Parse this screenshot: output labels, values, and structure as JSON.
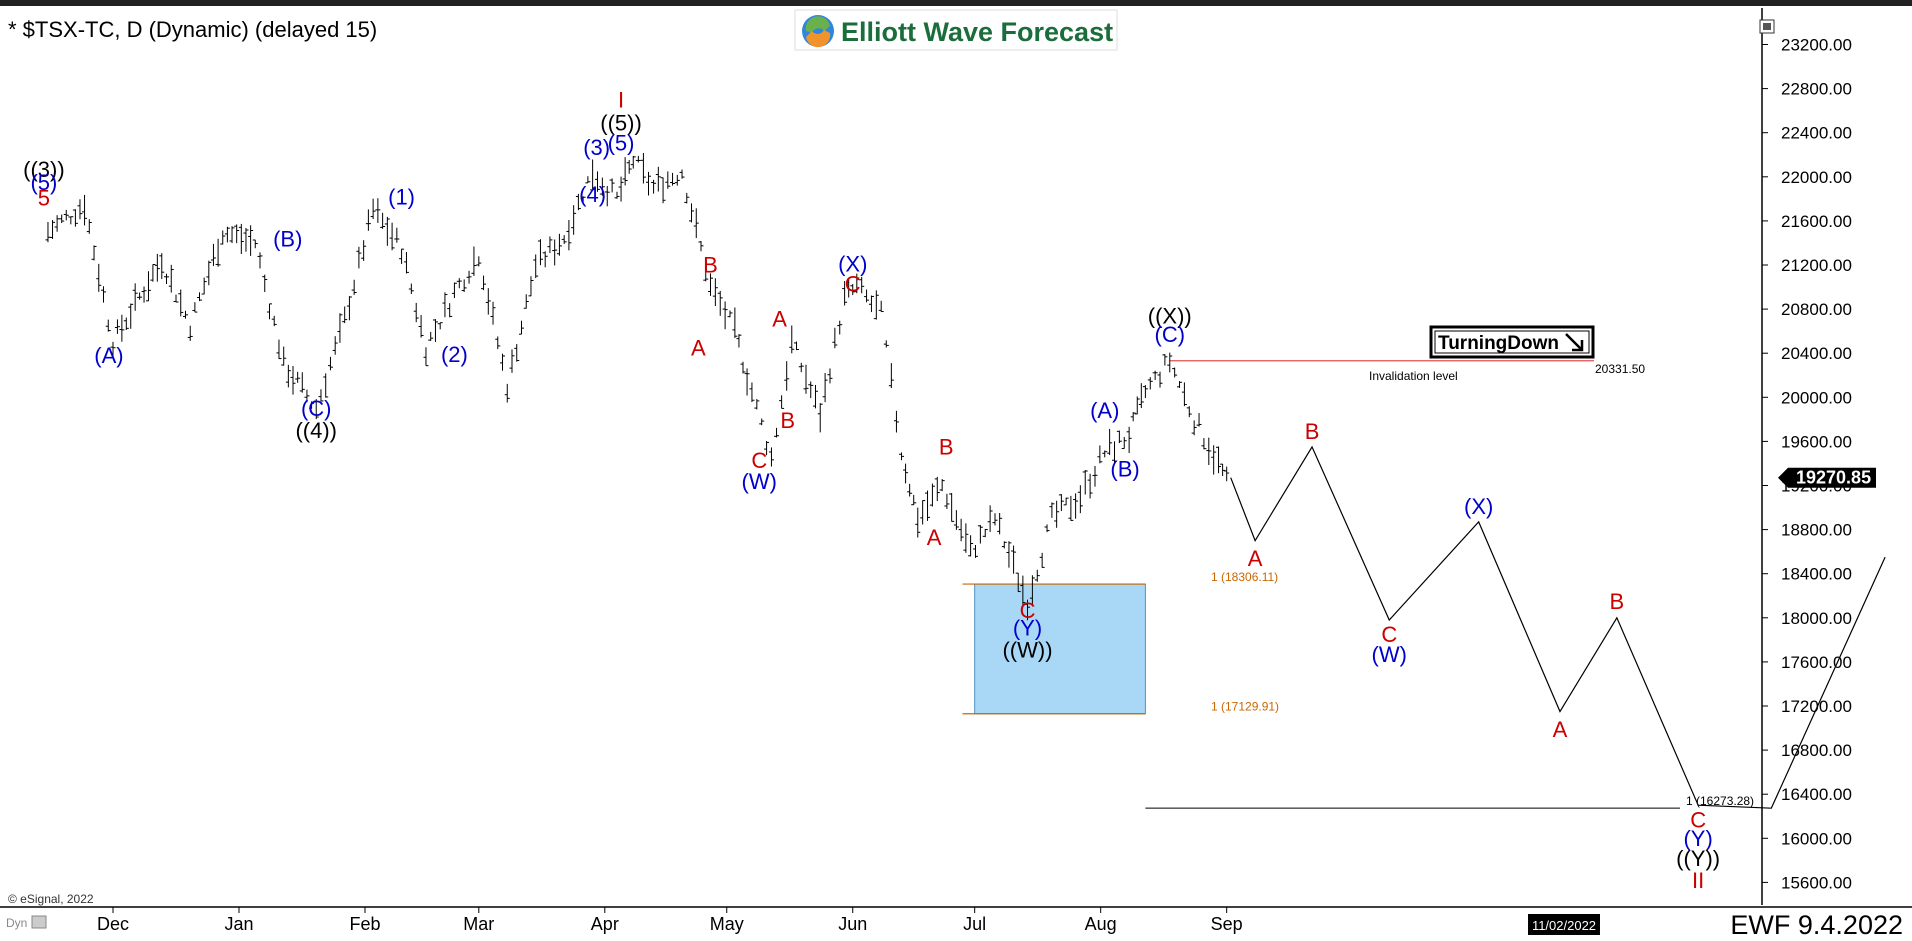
{
  "header": {
    "symbol_title": "* $TSX-TC, D (Dynamic) (delayed 15)",
    "logo_text": "Elliott Wave Forecast",
    "footer_brand": "EWF 9.4.2022",
    "date_marker": "11/02/2022",
    "copyright": "© eSignal, 2022",
    "dyn_label": "Dyn"
  },
  "colors": {
    "blue": "#0000cc",
    "red": "#cc0000",
    "black": "#000000",
    "target_box_fill": "#a9d8f7",
    "invalidation_line": "#e05050",
    "fib_line": "#cc6600"
  },
  "chart_data": {
    "type": "line",
    "title": "",
    "current_price": "19270.85",
    "y_axis_ticks": [
      "23200.00",
      "22800.00",
      "22400.00",
      "22000.00",
      "21600.00",
      "21200.00",
      "20800.00",
      "20400.00",
      "20000.00",
      "19600.00",
      "19200.00",
      "18800.00",
      "18400.00",
      "18000.00",
      "17600.00",
      "17200.00",
      "16800.00",
      "16400.00",
      "16000.00",
      "15600.00"
    ],
    "ylim": [
      15400,
      23450
    ],
    "x_months": [
      "Dec",
      "Jan",
      "Feb",
      "Mar",
      "Apr",
      "May",
      "Jun",
      "Jul",
      "Aug",
      "Sep"
    ],
    "price_series": {
      "name": "",
      "x": [
        "2021-11-15",
        "2021-11-24",
        "2021-12-01",
        "2021-12-13",
        "2021-12-20",
        "2021-12-28",
        "2022-01-05",
        "2022-01-12",
        "2022-01-20",
        "2022-01-27",
        "2022-02-03",
        "2022-02-10",
        "2022-02-16",
        "2022-02-23",
        "2022-03-01",
        "2022-03-08",
        "2022-03-15",
        "2022-03-22",
        "2022-03-29",
        "2022-04-04",
        "2022-04-08",
        "2022-04-13",
        "2022-04-20",
        "2022-04-27",
        "2022-05-03",
        "2022-05-06",
        "2022-05-12",
        "2022-05-17",
        "2022-05-24",
        "2022-05-30",
        "2022-06-02",
        "2022-06-08",
        "2022-06-13",
        "2022-06-17",
        "2022-06-23",
        "2022-06-30",
        "2022-07-06",
        "2022-07-14",
        "2022-07-20",
        "2022-07-27",
        "2022-08-02",
        "2022-08-08",
        "2022-08-12",
        "2022-08-18",
        "2022-08-24",
        "2022-08-30",
        "2022-09-02"
      ],
      "y": [
        21500,
        21750,
        20500,
        21250,
        20650,
        21500,
        21400,
        20300,
        19900,
        20700,
        21700,
        21350,
        20450,
        20950,
        21300,
        20100,
        21200,
        21450,
        22050,
        21800,
        22150,
        21900,
        22050,
        21000,
        20600,
        20200,
        19450,
        20500,
        19850,
        20900,
        21000,
        20750,
        19500,
        18900,
        19200,
        18600,
        18900,
        18150,
        18900,
        19100,
        19500,
        19650,
        20050,
        20331,
        19800,
        19400,
        19150
      ]
    },
    "projection": {
      "name": "",
      "x": [
        "2022-09-02",
        "2022-09-08",
        "2022-09-22",
        "2022-10-11",
        "2022-11-02",
        "2022-11-22",
        "2022-12-06",
        "2022-12-26",
        "2023-01-13",
        "2023-02-10"
      ],
      "y": [
        19270.85,
        18700,
        19550,
        17980,
        18870,
        17150,
        18000,
        16300,
        16273.28,
        18550
      ]
    },
    "levels": [
      {
        "label": "Invalidation level",
        "value_label": "20331.50",
        "value": 20331.5
      },
      {
        "label": "1 (18306.11)",
        "value": 18306.11
      },
      {
        "label": "1 (17129.91)",
        "value": 17129.91
      },
      {
        "label": "1 (16273.28)",
        "value": 16273.28
      }
    ],
    "target_box": {
      "x_start": "2022-07-01",
      "x_end": "2022-08-12",
      "y_top": 18306.11,
      "y_bottom": 17129.91
    },
    "wave_labels": [
      {
        "text": "((3))",
        "x": "2021-11-14",
        "y": 22000,
        "color": "black"
      },
      {
        "text": "(5)",
        "x": "2021-11-14",
        "y": 21880,
        "color": "blue"
      },
      {
        "text": "5",
        "x": "2021-11-14",
        "y": 21740,
        "color": "red"
      },
      {
        "text": "(A)",
        "x": "2021-11-30",
        "y": 20310,
        "color": "blue"
      },
      {
        "text": "(B)",
        "x": "2022-01-13",
        "y": 21370,
        "color": "blue"
      },
      {
        "text": "(C)",
        "x": "2022-01-20",
        "y": 19830,
        "color": "blue"
      },
      {
        "text": "((4))",
        "x": "2022-01-20",
        "y": 19630,
        "color": "black"
      },
      {
        "text": "(1)",
        "x": "2022-02-10",
        "y": 21750,
        "color": "blue"
      },
      {
        "text": "(2)",
        "x": "2022-02-23",
        "y": 20320,
        "color": "blue"
      },
      {
        "text": "(3)",
        "x": "2022-03-30",
        "y": 22200,
        "color": "blue"
      },
      {
        "text": "(4)",
        "x": "2022-03-29",
        "y": 21770,
        "color": "blue"
      },
      {
        "text": "I",
        "x": "2022-04-05",
        "y": 22630,
        "color": "red"
      },
      {
        "text": "((5))",
        "x": "2022-04-05",
        "y": 22420,
        "color": "black"
      },
      {
        "text": "(5)",
        "x": "2022-04-05",
        "y": 22240,
        "color": "blue"
      },
      {
        "text": "B",
        "x": "2022-04-27",
        "y": 21130,
        "color": "red"
      },
      {
        "text": "A",
        "x": "2022-04-24",
        "y": 20380,
        "color": "red"
      },
      {
        "text": "A",
        "x": "2022-05-14",
        "y": 20640,
        "color": "red"
      },
      {
        "text": "B",
        "x": "2022-05-16",
        "y": 19720,
        "color": "red"
      },
      {
        "text": "C",
        "x": "2022-05-09",
        "y": 19360,
        "color": "red"
      },
      {
        "text": "(W)",
        "x": "2022-05-09",
        "y": 19170,
        "color": "blue"
      },
      {
        "text": "(X)",
        "x": "2022-06-01",
        "y": 21140,
        "color": "blue"
      },
      {
        "text": "C",
        "x": "2022-06-01",
        "y": 20960,
        "color": "red"
      },
      {
        "text": "B",
        "x": "2022-06-24",
        "y": 19480,
        "color": "red"
      },
      {
        "text": "A",
        "x": "2022-06-21",
        "y": 18660,
        "color": "red"
      },
      {
        "text": "C",
        "x": "2022-07-14",
        "y": 18000,
        "color": "red"
      },
      {
        "text": "(Y)",
        "x": "2022-07-14",
        "y": 17840,
        "color": "blue"
      },
      {
        "text": "((W))",
        "x": "2022-07-14",
        "y": 17640,
        "color": "black"
      },
      {
        "text": "(A)",
        "x": "2022-08-02",
        "y": 19810,
        "color": "blue"
      },
      {
        "text": "(B)",
        "x": "2022-08-07",
        "y": 19280,
        "color": "blue"
      },
      {
        "text": "((X))",
        "x": "2022-08-18",
        "y": 20670,
        "color": "black"
      },
      {
        "text": "(C)",
        "x": "2022-08-18",
        "y": 20500,
        "color": "blue"
      },
      {
        "text": "A",
        "x": "2022-09-08",
        "y": 18470,
        "color": "red"
      },
      {
        "text": "B",
        "x": "2022-09-22",
        "y": 19620,
        "color": "red"
      },
      {
        "text": "C",
        "x": "2022-10-11",
        "y": 17780,
        "color": "red"
      },
      {
        "text": "(W)",
        "x": "2022-10-11",
        "y": 17600,
        "color": "blue"
      },
      {
        "text": "(X)",
        "x": "2022-11-02",
        "y": 18940,
        "color": "blue"
      },
      {
        "text": "A",
        "x": "2022-11-22",
        "y": 16920,
        "color": "red"
      },
      {
        "text": "B",
        "x": "2022-12-06",
        "y": 18080,
        "color": "red"
      },
      {
        "text": "C",
        "x": "2022-12-26",
        "y": 16100,
        "color": "red"
      },
      {
        "text": "(Y)",
        "x": "2022-12-26",
        "y": 15930,
        "color": "blue"
      },
      {
        "text": "((Y))",
        "x": "2022-12-26",
        "y": 15750,
        "color": "black"
      },
      {
        "text": "II",
        "x": "2022-12-26",
        "y": 15550,
        "color": "red"
      }
    ]
  },
  "turning_down": {
    "label": "TurningDown",
    "arrow": "arrow-down-right-icon"
  }
}
